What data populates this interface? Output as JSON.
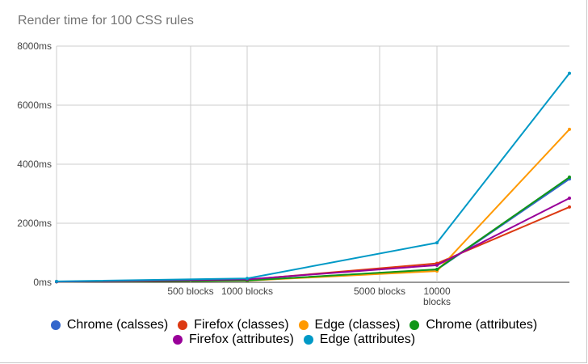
{
  "chart_data": {
    "type": "line",
    "title": "Render time for 100 CSS rules",
    "x_labels": [
      {
        "value": 500,
        "label": "500 blocks"
      },
      {
        "value": 1000,
        "label": "1000 blocks"
      },
      {
        "value": 5000,
        "label": "5000 blocks"
      },
      {
        "value": 10000,
        "label": "10000 blocks"
      }
    ],
    "x_points": [
      10,
      1000,
      10000,
      50000
    ],
    "y_ticks": [
      "0ms",
      "2000ms",
      "4000ms",
      "6000ms",
      "8000ms"
    ],
    "y_tick_values": [
      0,
      2000,
      4000,
      6000,
      8000
    ],
    "ylim": [
      0,
      8000
    ],
    "grid": true,
    "legend_position": "bottom",
    "series": [
      {
        "name": "Chrome (calsses)",
        "color": "#3366cc",
        "values": [
          20,
          60,
          430,
          3500
        ]
      },
      {
        "name": "Firefox (classes)",
        "color": "#dc3912",
        "values": [
          20,
          90,
          640,
          2550
        ]
      },
      {
        "name": "Edge (classes)",
        "color": "#ff9900",
        "values": [
          20,
          55,
          380,
          5180
        ]
      },
      {
        "name": "Chrome (attributes)",
        "color": "#109618",
        "values": [
          20,
          60,
          440,
          3560
        ]
      },
      {
        "name": "Firefox (attributes)",
        "color": "#990099",
        "values": [
          20,
          100,
          580,
          2850
        ]
      },
      {
        "name": "Edge (attributes)",
        "color": "#0099c6",
        "values": [
          30,
          130,
          1340,
          7080
        ]
      }
    ]
  }
}
